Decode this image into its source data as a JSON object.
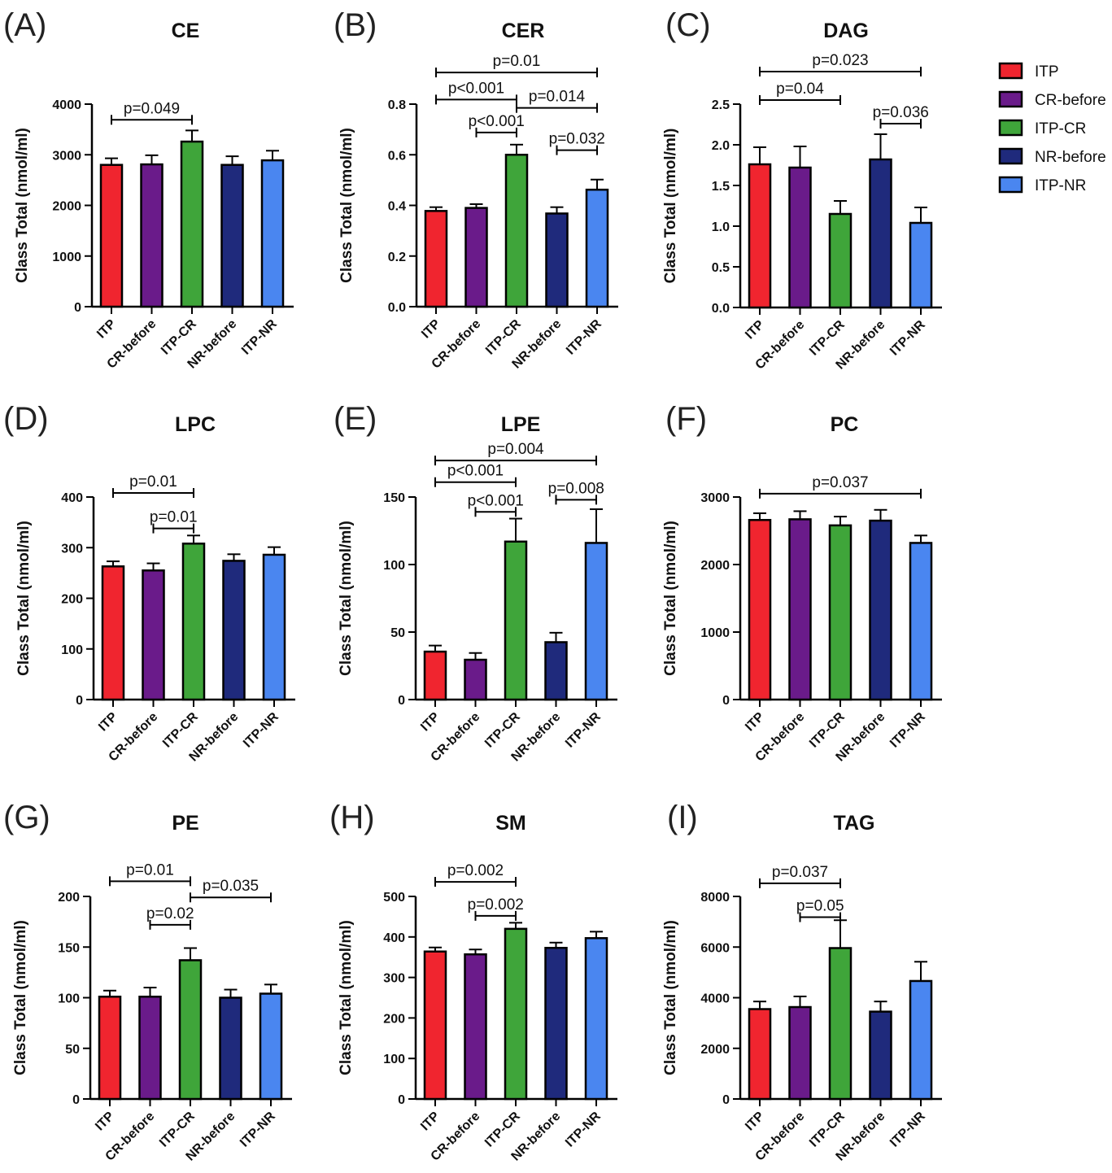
{
  "legend": [
    {
      "label": "ITP",
      "color": "#f0252f"
    },
    {
      "label": "CR-before",
      "color": "#6a1b8a"
    },
    {
      "label": "ITP-CR",
      "color": "#3fa53a"
    },
    {
      "label": "NR-before",
      "color": "#1f2a7c"
    },
    {
      "label": "ITP-NR",
      "color": "#4a86f0"
    }
  ],
  "chart_data": [
    {
      "type": "bar",
      "panel": "(A)",
      "title": "CE",
      "ylabel": "Class Total (nmol/ml)",
      "categories": [
        "ITP",
        "CR-before",
        "ITP-CR",
        "NR-before",
        "ITP-NR"
      ],
      "values": [
        2800,
        2810,
        3260,
        2800,
        2890
      ],
      "errors": [
        130,
        180,
        220,
        170,
        190
      ],
      "ylim": [
        0,
        4000
      ],
      "yticks": [
        0,
        1000,
        2000,
        3000,
        4000
      ],
      "ytick_labels": [
        "0",
        "1000",
        "2000",
        "3000",
        "4000"
      ],
      "comparisons": [
        {
          "from": 0,
          "to": 2,
          "label": "p=0.049",
          "y": 3690
        }
      ]
    },
    {
      "type": "bar",
      "panel": "(B)",
      "title": "CER",
      "ylabel": "Class Total (nmol/ml)",
      "categories": [
        "ITP",
        "CR-before",
        "ITP-CR",
        "NR-before",
        "ITP-NR"
      ],
      "values": [
        0.378,
        0.39,
        0.6,
        0.368,
        0.462
      ],
      "errors": [
        0.015,
        0.015,
        0.04,
        0.025,
        0.04
      ],
      "ylim": [
        0,
        0.8
      ],
      "yticks": [
        0,
        0.2,
        0.4,
        0.6,
        0.8
      ],
      "ytick_labels": [
        "0.0",
        "0.2",
        "0.4",
        "0.6",
        "0.8"
      ],
      "comparisons": [
        {
          "from": 0,
          "to": 4,
          "label": "p=0.01",
          "y": 0.925
        },
        {
          "from": 0,
          "to": 2,
          "label": "p<0.001",
          "y": 0.818
        },
        {
          "from": 2,
          "to": 4,
          "label": "p=0.014",
          "y": 0.785
        },
        {
          "from": 1,
          "to": 2,
          "label": "p<0.001",
          "y": 0.688
        },
        {
          "from": 3,
          "to": 4,
          "label": "p=0.032",
          "y": 0.618
        }
      ]
    },
    {
      "type": "bar",
      "panel": "(C)",
      "title": "DAG",
      "ylabel": "Class Total (nmol/ml)",
      "categories": [
        "ITP",
        "CR-before",
        "ITP-CR",
        "NR-before",
        "ITP-NR"
      ],
      "values": [
        1.76,
        1.72,
        1.15,
        1.82,
        1.04
      ],
      "errors": [
        0.21,
        0.26,
        0.16,
        0.31,
        0.19
      ],
      "ylim": [
        0,
        2.5
      ],
      "yticks": [
        0,
        0.5,
        1.0,
        1.5,
        2.0,
        2.5
      ],
      "ytick_labels": [
        "0.0",
        "0.5",
        "1.0",
        "1.5",
        "2.0",
        "2.5"
      ],
      "comparisons": [
        {
          "from": 0,
          "to": 4,
          "label": "p=0.023",
          "y": 2.9
        },
        {
          "from": 0,
          "to": 2,
          "label": "p=0.04",
          "y": 2.55
        },
        {
          "from": 3,
          "to": 4,
          "label": "p=0.036",
          "y": 2.26
        }
      ]
    },
    {
      "type": "bar",
      "panel": "(D)",
      "title": "LPC",
      "ylabel": "Class Total (nmol/ml)",
      "categories": [
        "ITP",
        "CR-before",
        "ITP-CR",
        "NR-before",
        "ITP-NR"
      ],
      "values": [
        263,
        255,
        308,
        274,
        286
      ],
      "errors": [
        10,
        14,
        16,
        13,
        15
      ],
      "ylim": [
        0,
        400
      ],
      "yticks": [
        0,
        100,
        200,
        300,
        400
      ],
      "ytick_labels": [
        "0",
        "100",
        "200",
        "300",
        "400"
      ],
      "comparisons": [
        {
          "from": 0,
          "to": 2,
          "label": "p=0.01",
          "y": 408
        },
        {
          "from": 1,
          "to": 2,
          "label": "p=0.01",
          "y": 338
        }
      ]
    },
    {
      "type": "bar",
      "panel": "(E)",
      "title": "LPE",
      "ylabel": "Class Total (nmol/ml)",
      "categories": [
        "ITP",
        "CR-before",
        "ITP-CR",
        "NR-before",
        "ITP-NR"
      ],
      "values": [
        35.5,
        29.5,
        117,
        42.5,
        116
      ],
      "errors": [
        4.5,
        5,
        17,
        7,
        25
      ],
      "ylim": [
        0,
        150
      ],
      "yticks": [
        0,
        50,
        100,
        150
      ],
      "ytick_labels": [
        "0",
        "50",
        "100",
        "150"
      ],
      "comparisons": [
        {
          "from": 0,
          "to": 4,
          "label": "p=0.004",
          "y": 177
        },
        {
          "from": 0,
          "to": 2,
          "label": "p<0.001",
          "y": 161
        },
        {
          "from": 1,
          "to": 2,
          "label": "p<0.001",
          "y": 139
        },
        {
          "from": 3,
          "to": 4,
          "label": "p=0.008",
          "y": 148
        }
      ]
    },
    {
      "type": "bar",
      "panel": "(F)",
      "title": "PC",
      "ylabel": "Class Total (nmol/ml)",
      "categories": [
        "ITP",
        "CR-before",
        "ITP-CR",
        "NR-before",
        "ITP-NR"
      ],
      "values": [
        2660,
        2670,
        2580,
        2650,
        2320
      ],
      "errors": [
        100,
        120,
        130,
        160,
        110
      ],
      "ylim": [
        0,
        3000
      ],
      "yticks": [
        0,
        1000,
        2000,
        3000
      ],
      "ytick_labels": [
        "0",
        "1000",
        "2000",
        "3000"
      ],
      "comparisons": [
        {
          "from": 0,
          "to": 4,
          "label": "p=0.037",
          "y": 3050
        }
      ]
    },
    {
      "type": "bar",
      "panel": "(G)",
      "title": "PE",
      "ylabel": "Class Total (nmol/ml)",
      "categories": [
        "ITP",
        "CR-before",
        "ITP-CR",
        "NR-before",
        "ITP-NR"
      ],
      "values": [
        101,
        101,
        137,
        100,
        104
      ],
      "errors": [
        6,
        9,
        12,
        8,
        9
      ],
      "ylim": [
        0,
        200
      ],
      "yticks": [
        0,
        50,
        100,
        150,
        200
      ],
      "ytick_labels": [
        "0",
        "50",
        "100",
        "150",
        "200"
      ],
      "comparisons": [
        {
          "from": 0,
          "to": 2,
          "label": "p=0.01",
          "y": 215
        },
        {
          "from": 2,
          "to": 4,
          "label": "p=0.035",
          "y": 199
        },
        {
          "from": 1,
          "to": 2,
          "label": "p=0.02",
          "y": 172
        }
      ]
    },
    {
      "type": "bar",
      "panel": "(H)",
      "title": "SM",
      "ylabel": "Class Total (nmol/ml)",
      "categories": [
        "ITP",
        "CR-before",
        "ITP-CR",
        "NR-before",
        "ITP-NR"
      ],
      "values": [
        364,
        357,
        420,
        373,
        397
      ],
      "errors": [
        10,
        12,
        15,
        13,
        16
      ],
      "ylim": [
        0,
        500
      ],
      "yticks": [
        0,
        100,
        200,
        300,
        400,
        500
      ],
      "ytick_labels": [
        "0",
        "100",
        "200",
        "300",
        "400",
        "500"
      ],
      "comparisons": [
        {
          "from": 0,
          "to": 2,
          "label": "p=0.002",
          "y": 536
        },
        {
          "from": 1,
          "to": 2,
          "label": "p=0.002",
          "y": 452
        }
      ]
    },
    {
      "type": "bar",
      "panel": "(I)",
      "title": "TAG",
      "ylabel": "Class Total (nmol/ml)",
      "categories": [
        "ITP",
        "CR-before",
        "ITP-CR",
        "NR-before",
        "ITP-NR"
      ],
      "values": [
        3550,
        3630,
        5960,
        3450,
        4660
      ],
      "errors": [
        300,
        420,
        1100,
        400,
        760
      ],
      "ylim": [
        0,
        8000
      ],
      "yticks": [
        0,
        2000,
        4000,
        6000,
        8000
      ],
      "ytick_labels": [
        "0",
        "2000",
        "4000",
        "6000",
        "8000"
      ],
      "comparisons": [
        {
          "from": 0,
          "to": 2,
          "label": "p=0.037",
          "y": 8520
        },
        {
          "from": 1,
          "to": 2,
          "label": "p=0.05",
          "y": 7180
        }
      ]
    }
  ]
}
